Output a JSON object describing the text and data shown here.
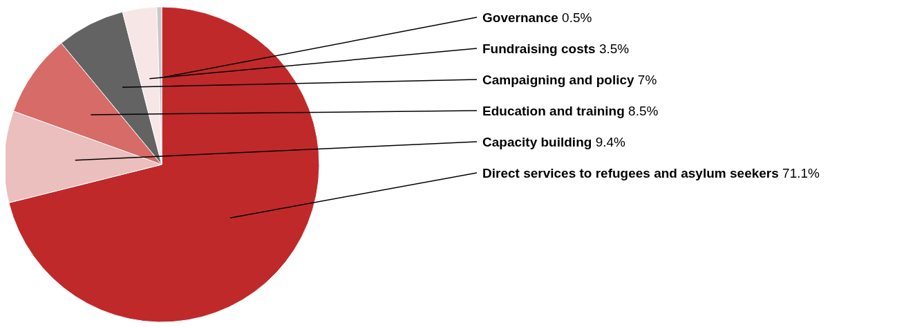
{
  "chart_data": {
    "type": "pie",
    "categories": [
      "Direct services to refugees and asylum seekers",
      "Capacity building",
      "Education and training",
      "Campaigning and policy",
      "Fundraising costs",
      "Governance"
    ],
    "values": [
      71.1,
      9.4,
      8.5,
      7,
      3.5,
      0.5
    ],
    "colors": [
      "#c0292a",
      "#ebbfbd",
      "#d66b68",
      "#636363",
      "#f7e6e6",
      "#c8c8c8"
    ],
    "value_labels": [
      "71.1%",
      "9.4%",
      "8.5%",
      "7%",
      "3.5%",
      "0.5%"
    ]
  }
}
